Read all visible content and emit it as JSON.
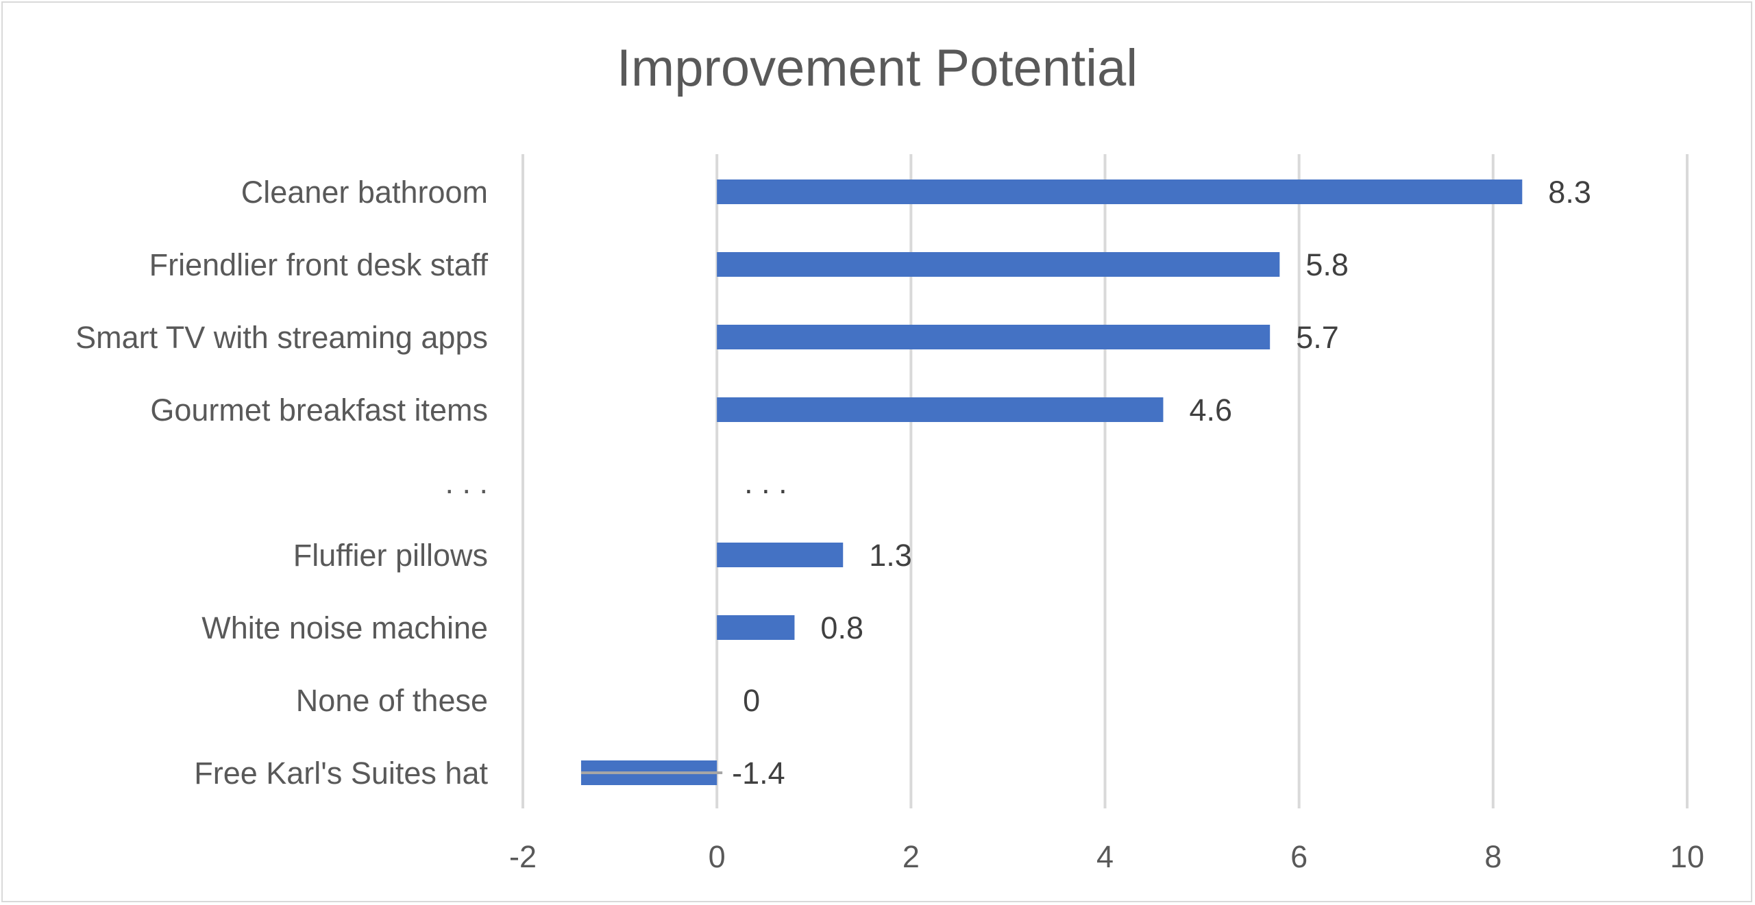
{
  "chart_data": {
    "type": "bar",
    "orientation": "horizontal",
    "title": "Improvement Potential",
    "xlabel": "",
    "ylabel": "",
    "xlim": [
      -2,
      10
    ],
    "x_ticks": [
      -2,
      0,
      2,
      4,
      6,
      8,
      10
    ],
    "x_tick_labels": [
      "-2",
      "0",
      "2",
      "4",
      "6",
      "8",
      "10"
    ],
    "grid": "vertical",
    "legend": "none",
    "bar_color": "#4472C4",
    "categories": [
      "Cleaner bathroom",
      "Friendlier front desk staff",
      "Smart TV with streaming apps",
      "Gourmet breakfast items",
      ". . .",
      "Fluffier pillows",
      "White noise machine",
      "None of these",
      "Free Karl's Suites hat"
    ],
    "values": [
      8.3,
      5.8,
      5.7,
      4.6,
      null,
      1.3,
      0.8,
      0,
      -1.4
    ],
    "data_labels": [
      "8.3",
      "5.8",
      "5.7",
      "4.6",
      ". . .",
      "1.3",
      "0.8",
      "0",
      "-1.4"
    ]
  }
}
